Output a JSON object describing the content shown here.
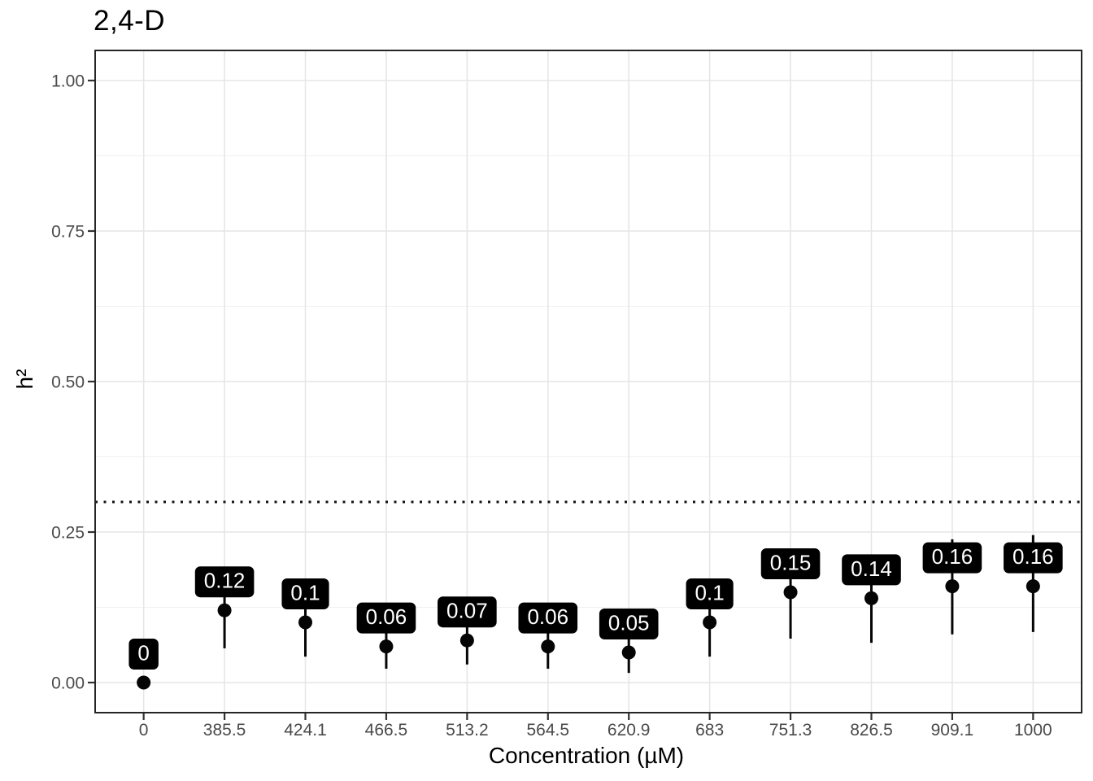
{
  "chart_data": {
    "type": "scatter",
    "title": "2,4-D",
    "xlabel": "Concentration (µM)",
    "ylabel": "h²",
    "categories": [
      "0",
      "385.5",
      "424.1",
      "466.5",
      "513.2",
      "564.5",
      "620.9",
      "683",
      "751.3",
      "826.5",
      "909.1",
      "1000"
    ],
    "values": [
      0,
      0.12,
      0.1,
      0.06,
      0.07,
      0.06,
      0.05,
      0.1,
      0.15,
      0.14,
      0.16,
      0.16
    ],
    "point_labels": [
      "0",
      "0.12",
      "0.1",
      "0.06",
      "0.07",
      "0.06",
      "0.05",
      "0.1",
      "0.15",
      "0.14",
      "0.16",
      "0.16"
    ],
    "error_low": [
      null,
      0.057,
      0.043,
      0.023,
      0.03,
      0.023,
      0.016,
      0.043,
      0.073,
      0.066,
      0.08,
      0.084
    ],
    "error_high": [
      null,
      0.19,
      0.16,
      0.1,
      0.12,
      0.1,
      0.09,
      0.16,
      0.21,
      0.2,
      0.238,
      0.245
    ],
    "reference_line_y": 0.3,
    "reference_line_style": "dotted",
    "ylim": [
      -0.05,
      1.05
    ],
    "yticks": [
      0,
      0.25,
      0.5,
      0.75,
      1
    ],
    "ytick_labels": [
      "0.00",
      "0.25",
      "0.50",
      "0.75",
      "1.00"
    ],
    "yminor_ticks": [
      0.125,
      0.375,
      0.625,
      0.875
    ],
    "grid": "major-and-minor-horizontal, major-vertical",
    "legend_position": "none",
    "colors": {
      "point": "#050505",
      "error_bar": "#050505",
      "label_bg": "#000000",
      "label_text": "#ffffff",
      "grid_major": "#e6e6e6",
      "grid_minor": "#f0f0f0",
      "panel_border": "#262626",
      "axis_tick": "#333333",
      "tick_label": "#4a4a4a",
      "reference_line": "#111111",
      "panel_bg": "#ffffff"
    }
  }
}
